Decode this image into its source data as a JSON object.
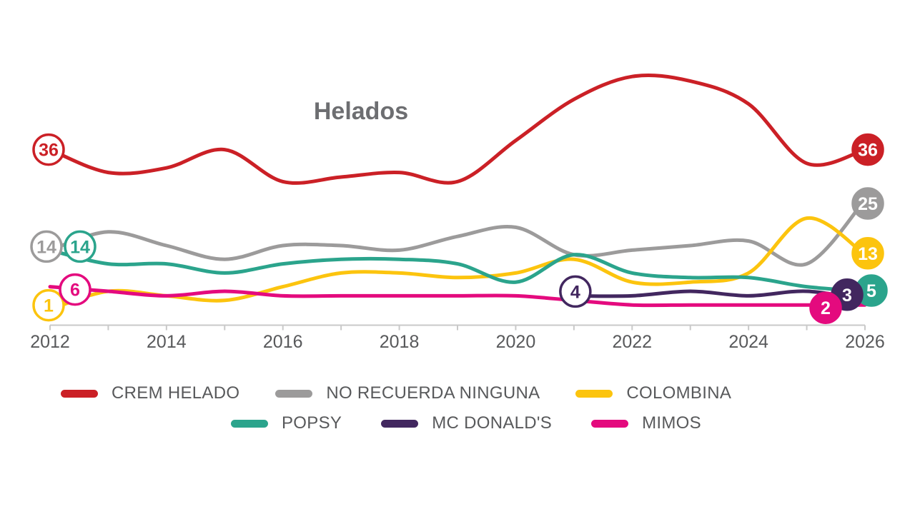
{
  "chart_data": {
    "type": "line",
    "title": "Helados",
    "x": [
      2012,
      2013,
      2014,
      2015,
      2016,
      2017,
      2018,
      2019,
      2020,
      2021,
      2022,
      2023,
      2024,
      2025,
      2026
    ],
    "x_tick_labels": [
      2012,
      2014,
      2016,
      2018,
      2020,
      2022,
      2024,
      2026
    ],
    "xlim": [
      2012,
      2026
    ],
    "ylim": [
      0,
      55
    ],
    "grid": false,
    "legend_position": "bottom",
    "series": [
      {
        "name": "CREM HELADO",
        "color": "#cb2026",
        "values": [
          36,
          31,
          32,
          36,
          29,
          30,
          31,
          29,
          38,
          47,
          52,
          51,
          46,
          33,
          36
        ],
        "markers": [
          {
            "label": "36",
            "year": 2012,
            "value": 36,
            "style": "outline",
            "dx": -2,
            "dy": 0
          },
          {
            "label": "36",
            "year": 2026,
            "value": 36,
            "style": "filled",
            "dx": 4,
            "dy": 0
          }
        ]
      },
      {
        "name": "NO RECUERDA NINGUNA",
        "color": "#9c9b9b",
        "values": [
          14,
          18,
          15,
          12,
          15,
          15,
          14,
          17,
          19,
          13,
          14,
          15,
          16,
          11,
          25
        ],
        "markers": [
          {
            "label": "14",
            "year": 2012,
            "value": 14,
            "style": "outline",
            "dx": -5,
            "dy": -5
          },
          {
            "label": "25",
            "year": 2026,
            "value": 25,
            "style": "filled",
            "dx": 4,
            "dy": 5
          }
        ]
      },
      {
        "name": "COLOMBINA",
        "color": "#fcc40e",
        "values": [
          1,
          5,
          4,
          3,
          6,
          9,
          9,
          8,
          9,
          12,
          7,
          7,
          9,
          21,
          13
        ],
        "markers": [
          {
            "label": "1",
            "year": 2012,
            "value": 1,
            "style": "outline",
            "dx": -2,
            "dy": -6
          },
          {
            "label": "13",
            "year": 2026,
            "value": 13,
            "style": "filled",
            "dx": 4,
            "dy": -2
          }
        ]
      },
      {
        "name": "POPSY",
        "color": "#2ba48c",
        "values": [
          14,
          11,
          11,
          9,
          11,
          12,
          12,
          11,
          7,
          13,
          9,
          8,
          8,
          6,
          5
        ],
        "markers": [
          {
            "label": "14",
            "year": 2012,
            "value": 14,
            "style": "outline",
            "dx": 42,
            "dy": -5
          },
          {
            "label": "5",
            "year": 2026,
            "value": 5,
            "style": "filled",
            "dx": 9,
            "dy": -1
          }
        ]
      },
      {
        "name": "MC DONALD'S",
        "color": "#42275f",
        "values": [
          null,
          null,
          null,
          null,
          null,
          null,
          null,
          null,
          null,
          4,
          4,
          5,
          4,
          5,
          3
        ],
        "markers": [
          {
            "label": "4",
            "year": 2021,
            "value": 4,
            "style": "outline",
            "dx": 2,
            "dy": -6
          },
          {
            "label": "3",
            "year": 2026,
            "value": 3,
            "style": "filled",
            "dx": -25,
            "dy": -8
          }
        ]
      },
      {
        "name": "MIMOS",
        "color": "#e40a7e",
        "values": [
          6,
          5,
          4,
          5,
          4,
          4,
          4,
          4,
          4,
          3,
          2,
          2,
          2,
          2,
          2
        ],
        "markers": [
          {
            "label": "6",
            "year": 2012,
            "value": 6,
            "style": "outline",
            "dx": 35,
            "dy": 4
          },
          {
            "label": "2",
            "year": 2026,
            "value": 2,
            "style": "filled",
            "dx": -55,
            "dy": 4
          }
        ]
      }
    ]
  },
  "legend": {
    "rows": [
      [
        "CREM HELADO",
        "NO RECUERDA NINGUNA",
        "COLOMBINA"
      ],
      [
        "POPSY",
        "MC DONALD'S",
        "MIMOS"
      ]
    ]
  },
  "axis": {
    "color": "#c9c9c9",
    "label_color": "#58595b"
  }
}
